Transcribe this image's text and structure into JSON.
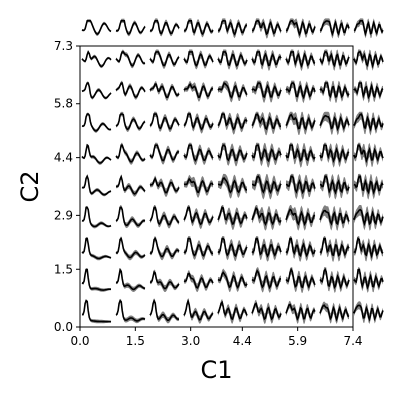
{
  "chart_data": {
    "type": "line",
    "title": "",
    "xlabel": "C1",
    "ylabel": "C2",
    "xlim": [
      0.0,
      7.4
    ],
    "ylim": [
      0.0,
      7.3
    ],
    "x_ticks": [
      {
        "value": 0.0,
        "label": "0.0"
      },
      {
        "value": 1.5,
        "label": "1.5"
      },
      {
        "value": 3.0,
        "label": "3.0"
      },
      {
        "value": 4.4,
        "label": "4.4"
      },
      {
        "value": 5.9,
        "label": "5.9"
      },
      {
        "value": 7.4,
        "label": "7.4"
      }
    ],
    "y_ticks": [
      {
        "value": 0.0,
        "label": "0.0"
      },
      {
        "value": 1.5,
        "label": "1.5"
      },
      {
        "value": 2.9,
        "label": "2.9"
      },
      {
        "value": 4.4,
        "label": "4.4"
      },
      {
        "value": 5.8,
        "label": "5.8"
      },
      {
        "value": 7.3,
        "label": "7.3"
      }
    ],
    "grid": false,
    "legend": "none",
    "small_multiples": {
      "rows": 10,
      "cols": 9,
      "description": "Grid of small line plots (mean curve with gray shaded band) over C1-C2 space",
      "line_color": "#000000",
      "band_color": "#808080"
    }
  }
}
